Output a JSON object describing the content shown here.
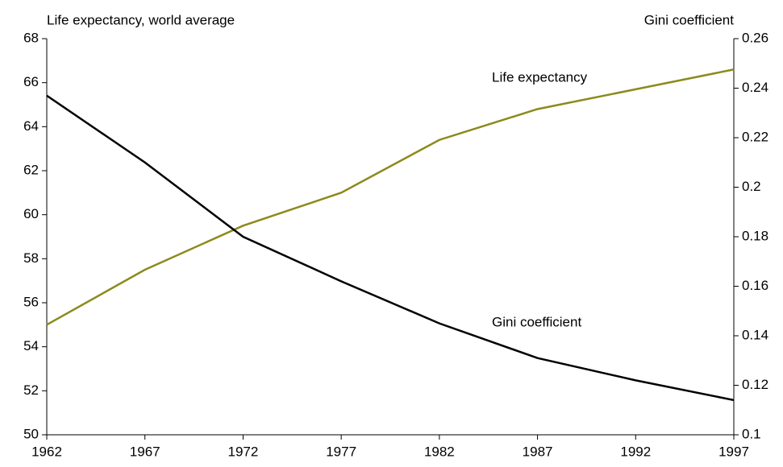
{
  "chart_data": {
    "type": "line",
    "y_label": "Life expectancy, world average",
    "y2_label": "Gini coefficient",
    "x": [
      1962,
      1967,
      1972,
      1977,
      1982,
      1987,
      1992,
      1997
    ],
    "xlim": [
      1962,
      1997
    ],
    "xticks": [
      1962,
      1967,
      1972,
      1977,
      1982,
      1987,
      1992,
      1997
    ],
    "ylim": [
      50,
      68
    ],
    "yticks": [
      50,
      52,
      54,
      56,
      58,
      60,
      62,
      64,
      66,
      68
    ],
    "y2lim": [
      0.1,
      0.26
    ],
    "y2ticks": [
      0.1,
      0.12,
      0.14,
      0.16,
      0.18,
      0.2,
      0.22,
      0.24,
      0.26
    ],
    "grid": false,
    "series": [
      {
        "name": "Life expectancy",
        "color": "#8c8a1c",
        "values": [
          55.0,
          57.5,
          59.5,
          61.0,
          63.4,
          64.8,
          65.7,
          66.6
        ]
      },
      {
        "name": "Gini coefficient",
        "color": "#000000",
        "axis": "y2",
        "values": [
          0.237,
          0.21,
          0.18,
          0.162,
          0.145,
          0.131,
          0.122,
          0.114
        ]
      }
    ]
  }
}
